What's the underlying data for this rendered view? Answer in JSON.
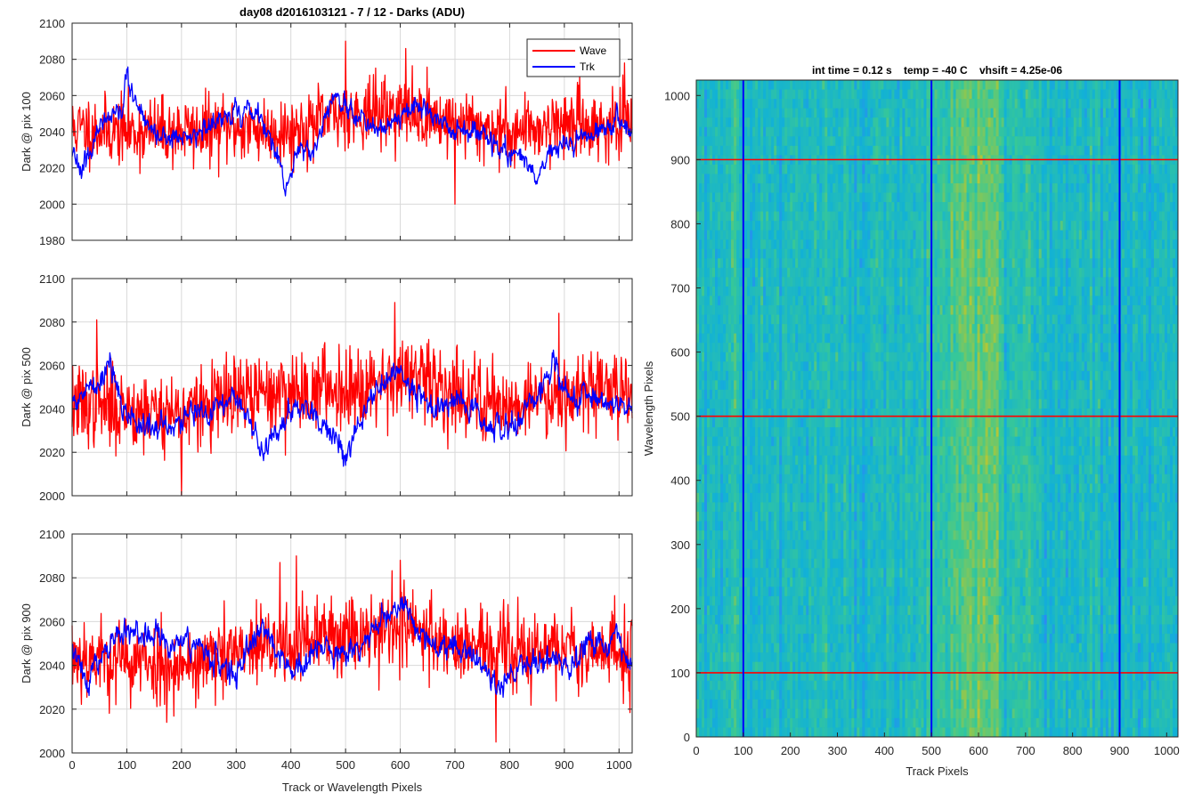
{
  "colors": {
    "wave": "#ff0000",
    "trk": "#0000ff",
    "grid": "#d9d9d9",
    "axis": "#262626"
  },
  "line_panels": {
    "title": "day08 d2016103121 - 7 / 12 - Darks (ADU)",
    "xlabel": "Track or Wavelength Pixels",
    "legend": {
      "wave": "Wave",
      "trk": "Trk",
      "location": "top-right of first panel"
    }
  },
  "image_panel": {
    "title": "int time = 0.12 s    temp = -40 C    vhsift = 4.25e-06",
    "xlabel": "Track Pixels",
    "ylabel": "Wavelength Pixels"
  },
  "chart_data": [
    {
      "type": "line",
      "panel": 1,
      "ylabel": "Dark @ pix 100",
      "xlim": [
        0,
        1024
      ],
      "ylim": [
        1980,
        2100
      ],
      "xticks": [
        0,
        100,
        200,
        300,
        400,
        500,
        600,
        700,
        800,
        900,
        1000
      ],
      "yticks": [
        1980,
        2000,
        2020,
        2040,
        2060,
        2080,
        2100
      ],
      "grid": true,
      "legend": [
        "Wave",
        "Trk"
      ],
      "series": [
        {
          "name": "Wave",
          "color": "#ff0000",
          "mean": 2042,
          "noise": 11,
          "seed": 11,
          "spikes": [
            [
              500,
              2090
            ],
            [
              700,
              2000
            ],
            [
              610,
              2086
            ],
            [
              1010,
              2078
            ]
          ],
          "anchors": [
            [
              0,
              2042
            ],
            [
              100,
              2040
            ],
            [
              200,
              2040
            ],
            [
              300,
              2042
            ],
            [
              400,
              2040
            ],
            [
              500,
              2050
            ],
            [
              600,
              2052
            ],
            [
              700,
              2045
            ],
            [
              800,
              2040
            ],
            [
              900,
              2045
            ],
            [
              1024,
              2042
            ]
          ]
        },
        {
          "name": "Trk",
          "color": "#0000ff",
          "mean": 2040,
          "noise": 4,
          "seed": 23,
          "anchors": [
            [
              0,
              2030
            ],
            [
              20,
              2022
            ],
            [
              50,
              2040
            ],
            [
              90,
              2050
            ],
            [
              100,
              2072
            ],
            [
              120,
              2050
            ],
            [
              150,
              2040
            ],
            [
              200,
              2035
            ],
            [
              250,
              2042
            ],
            [
              300,
              2052
            ],
            [
              340,
              2050
            ],
            [
              370,
              2030
            ],
            [
              390,
              2008
            ],
            [
              410,
              2025
            ],
            [
              440,
              2030
            ],
            [
              480,
              2060
            ],
            [
              520,
              2045
            ],
            [
              560,
              2040
            ],
            [
              600,
              2048
            ],
            [
              650,
              2055
            ],
            [
              700,
              2040
            ],
            [
              750,
              2038
            ],
            [
              780,
              2030
            ],
            [
              820,
              2025
            ],
            [
              850,
              2015
            ],
            [
              870,
              2025
            ],
            [
              900,
              2035
            ],
            [
              950,
              2040
            ],
            [
              1000,
              2048
            ],
            [
              1024,
              2040
            ]
          ]
        }
      ]
    },
    {
      "type": "line",
      "panel": 2,
      "ylabel": "Dark @ pix 500",
      "xlim": [
        0,
        1024
      ],
      "ylim": [
        2000,
        2100
      ],
      "xticks": [
        0,
        100,
        200,
        300,
        400,
        500,
        600,
        700,
        800,
        900,
        1000
      ],
      "yticks": [
        2000,
        2020,
        2040,
        2060,
        2080,
        2100
      ],
      "grid": true,
      "series": [
        {
          "name": "Wave",
          "color": "#ff0000",
          "mean": 2042,
          "noise": 11,
          "seed": 37,
          "spikes": [
            [
              45,
              2081
            ],
            [
              590,
              2089
            ],
            [
              890,
              2084
            ],
            [
              200,
              2000
            ]
          ],
          "anchors": [
            [
              0,
              2042
            ],
            [
              100,
              2040
            ],
            [
              200,
              2038
            ],
            [
              300,
              2045
            ],
            [
              400,
              2048
            ],
            [
              500,
              2050
            ],
            [
              600,
              2055
            ],
            [
              700,
              2048
            ],
            [
              800,
              2042
            ],
            [
              900,
              2048
            ],
            [
              1024,
              2050
            ]
          ]
        },
        {
          "name": "Trk",
          "color": "#0000ff",
          "mean": 2040,
          "noise": 4,
          "seed": 41,
          "anchors": [
            [
              0,
              2040
            ],
            [
              40,
              2055
            ],
            [
              70,
              2060
            ],
            [
              100,
              2035
            ],
            [
              150,
              2030
            ],
            [
              200,
              2035
            ],
            [
              250,
              2040
            ],
            [
              300,
              2045
            ],
            [
              350,
              2020
            ],
            [
              400,
              2040
            ],
            [
              450,
              2035
            ],
            [
              500,
              2020
            ],
            [
              550,
              2045
            ],
            [
              600,
              2060
            ],
            [
              650,
              2040
            ],
            [
              700,
              2045
            ],
            [
              750,
              2035
            ],
            [
              800,
              2030
            ],
            [
              850,
              2045
            ],
            [
              880,
              2060
            ],
            [
              900,
              2050
            ],
            [
              950,
              2040
            ],
            [
              1000,
              2045
            ],
            [
              1024,
              2040
            ]
          ]
        }
      ]
    },
    {
      "type": "line",
      "panel": 3,
      "ylabel": "Dark @ pix 900",
      "xlim": [
        0,
        1024
      ],
      "ylim": [
        2000,
        2100
      ],
      "xticks": [
        0,
        100,
        200,
        300,
        400,
        500,
        600,
        700,
        800,
        900,
        1000
      ],
      "yticks": [
        2000,
        2020,
        2040,
        2060,
        2080,
        2100
      ],
      "grid": true,
      "series": [
        {
          "name": "Wave",
          "color": "#ff0000",
          "mean": 2045,
          "noise": 11,
          "seed": 53,
          "spikes": [
            [
              380,
              2087
            ],
            [
              410,
              2090
            ],
            [
              600,
              2088
            ],
            [
              775,
              2005
            ]
          ],
          "anchors": [
            [
              0,
              2045
            ],
            [
              100,
              2042
            ],
            [
              200,
              2040
            ],
            [
              300,
              2045
            ],
            [
              400,
              2050
            ],
            [
              500,
              2055
            ],
            [
              600,
              2058
            ],
            [
              700,
              2050
            ],
            [
              800,
              2045
            ],
            [
              900,
              2048
            ],
            [
              1024,
              2045
            ]
          ]
        },
        {
          "name": "Trk",
          "color": "#0000ff",
          "mean": 2045,
          "noise": 4,
          "seed": 67,
          "anchors": [
            [
              0,
              2050
            ],
            [
              30,
              2030
            ],
            [
              60,
              2048
            ],
            [
              100,
              2055
            ],
            [
              150,
              2050
            ],
            [
              200,
              2050
            ],
            [
              250,
              2045
            ],
            [
              300,
              2035
            ],
            [
              350,
              2060
            ],
            [
              400,
              2035
            ],
            [
              450,
              2048
            ],
            [
              500,
              2045
            ],
            [
              550,
              2055
            ],
            [
              600,
              2068
            ],
            [
              650,
              2050
            ],
            [
              700,
              2050
            ],
            [
              750,
              2040
            ],
            [
              780,
              2030
            ],
            [
              820,
              2038
            ],
            [
              870,
              2045
            ],
            [
              900,
              2040
            ],
            [
              950,
              2050
            ],
            [
              1000,
              2055
            ],
            [
              1024,
              2040
            ]
          ]
        }
      ]
    },
    {
      "type": "heatmap",
      "panel": 4,
      "xlabel": "Track Pixels",
      "ylabel": "Wavelength Pixels",
      "xlim": [
        0,
        1024
      ],
      "ylim": [
        0,
        1024
      ],
      "xticks": [
        0,
        100,
        200,
        300,
        400,
        500,
        600,
        700,
        800,
        900,
        1000
      ],
      "yticks": [
        0,
        100,
        200,
        300,
        400,
        500,
        600,
        700,
        800,
        900,
        1000
      ],
      "colormap": "parula",
      "vertical_lines": {
        "x": [
          100,
          500,
          900
        ],
        "color": "#0000ff"
      },
      "horizontal_lines": {
        "y": [
          100,
          500,
          900
        ],
        "color": "#ff0000"
      },
      "warm_band_center_x": 590
    }
  ]
}
